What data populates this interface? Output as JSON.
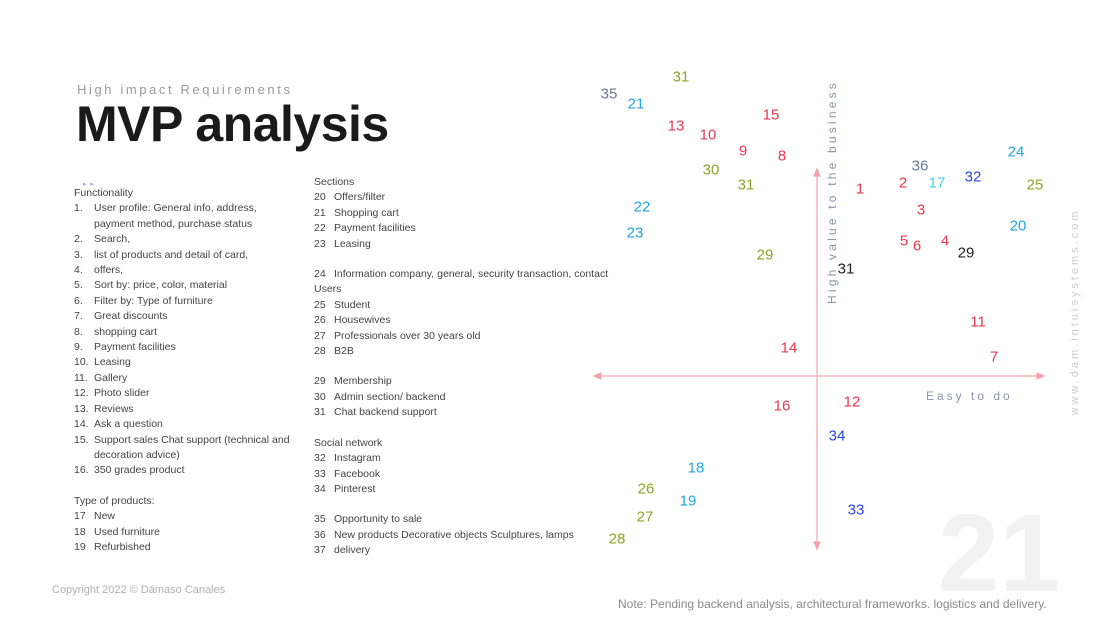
{
  "header": {
    "subtitle": "High impact Requirements",
    "title": "MVP analysis"
  },
  "functionality": {
    "heading": "Functionality",
    "items": [
      [
        "1.",
        "User profile: General info, address, payment method, purchase status"
      ],
      [
        "2.",
        "Search,"
      ],
      [
        "3.",
        "list of products and detail of card,"
      ],
      [
        "4.",
        "offers,"
      ],
      [
        "5.",
        "Sort by: price, color, material"
      ],
      [
        "6.",
        "Filter by: Type of furniture"
      ],
      [
        "7.",
        "Great discounts"
      ],
      [
        "8.",
        "shopping cart"
      ],
      [
        "9.",
        "Payment facilities"
      ],
      [
        "10.",
        "Leasing"
      ],
      [
        "11.",
        "Gallery"
      ],
      [
        "12.",
        "Photo slider"
      ],
      [
        "13.",
        "Reviews"
      ],
      [
        "14.",
        "Ask a question"
      ],
      [
        "15.",
        "Support sales Chat support (technical and decoration advice)"
      ],
      [
        "16.",
        "350 grades product"
      ]
    ]
  },
  "products": {
    "heading": "Type of products:",
    "items": [
      [
        "17",
        "New"
      ],
      [
        "18",
        "Used furniture"
      ],
      [
        "19",
        "Refurbished"
      ]
    ]
  },
  "sections": {
    "heading": "Sections",
    "items": [
      [
        "20",
        "Offers/filter"
      ],
      [
        "21",
        "Shopping cart"
      ],
      [
        "22",
        "Payment facilities"
      ],
      [
        "23",
        "Leasing"
      ]
    ]
  },
  "info": [
    "24",
    "Information company, general, security transaction, contact"
  ],
  "users": {
    "heading": "Users",
    "items": [
      [
        "25",
        "Student"
      ],
      [
        "26",
        "Housewives"
      ],
      [
        "27",
        "Professionals over 30 years old"
      ],
      [
        "28",
        "B2B"
      ]
    ]
  },
  "backend": [
    [
      "29",
      "Membership"
    ],
    [
      "30",
      "Admin section/ backend"
    ],
    [
      "31",
      "Chat backend support"
    ]
  ],
  "social": {
    "heading": "Social network",
    "items": [
      [
        "32",
        "Instagram"
      ],
      [
        "33",
        "Facebook"
      ],
      [
        "34",
        "Pinterest"
      ]
    ]
  },
  "other": [
    [
      "35",
      "Opportunity to sale"
    ],
    [
      "36",
      "New products Decorative objects Sculptures, lamps"
    ],
    [
      "37",
      "delivery"
    ]
  ],
  "matrix": {
    "y_axis": "High value to the business",
    "x_axis": "Easy to do",
    "colors": {
      "red": "#e8384f",
      "green": "#8aa624",
      "lightblue": "#1ea6e0",
      "grey": "#6b7895",
      "blue": "#2a44e0",
      "cyan": "#3fd3f2",
      "black": "#222222"
    },
    "points": [
      [
        "31",
        "green"
      ],
      [
        "35",
        "grey"
      ],
      [
        "21",
        "lightblue"
      ],
      [
        "13",
        "red"
      ],
      [
        "10",
        "red"
      ],
      [
        "15",
        "red"
      ],
      [
        "9",
        "red"
      ],
      [
        "8",
        "red"
      ],
      [
        "30",
        "green"
      ],
      [
        "31",
        "green"
      ],
      [
        "1",
        "red"
      ],
      [
        "2",
        "red"
      ],
      [
        "36",
        "grey"
      ],
      [
        "17",
        "cyan"
      ],
      [
        "32",
        "blue"
      ],
      [
        "24",
        "lightblue"
      ],
      [
        "25",
        "green"
      ],
      [
        "3",
        "red"
      ],
      [
        "22",
        "lightblue"
      ],
      [
        "23",
        "lightblue"
      ],
      [
        "5",
        "red"
      ],
      [
        "6",
        "red"
      ],
      [
        "4",
        "red"
      ],
      [
        "29",
        "black"
      ],
      [
        "20",
        "lightblue"
      ],
      [
        "29",
        "green"
      ],
      [
        "31",
        "black"
      ],
      [
        "11",
        "red"
      ],
      [
        "14",
        "red"
      ],
      [
        "7",
        "red"
      ],
      [
        "16",
        "red"
      ],
      [
        "12",
        "red"
      ],
      [
        "34",
        "blue"
      ],
      [
        "18",
        "lightblue"
      ],
      [
        "26",
        "green"
      ],
      [
        "19",
        "lightblue"
      ],
      [
        "27",
        "green"
      ],
      [
        "33",
        "blue"
      ],
      [
        "28",
        "green"
      ]
    ]
  },
  "footer": {
    "copyright": "Copyright  2022 © Dámaso Canales",
    "note": "Note: Pending backend analysis, architectural frameworks. logistics and delivery.",
    "watermark": "www.dam.intuisystems.com",
    "page": "21"
  }
}
